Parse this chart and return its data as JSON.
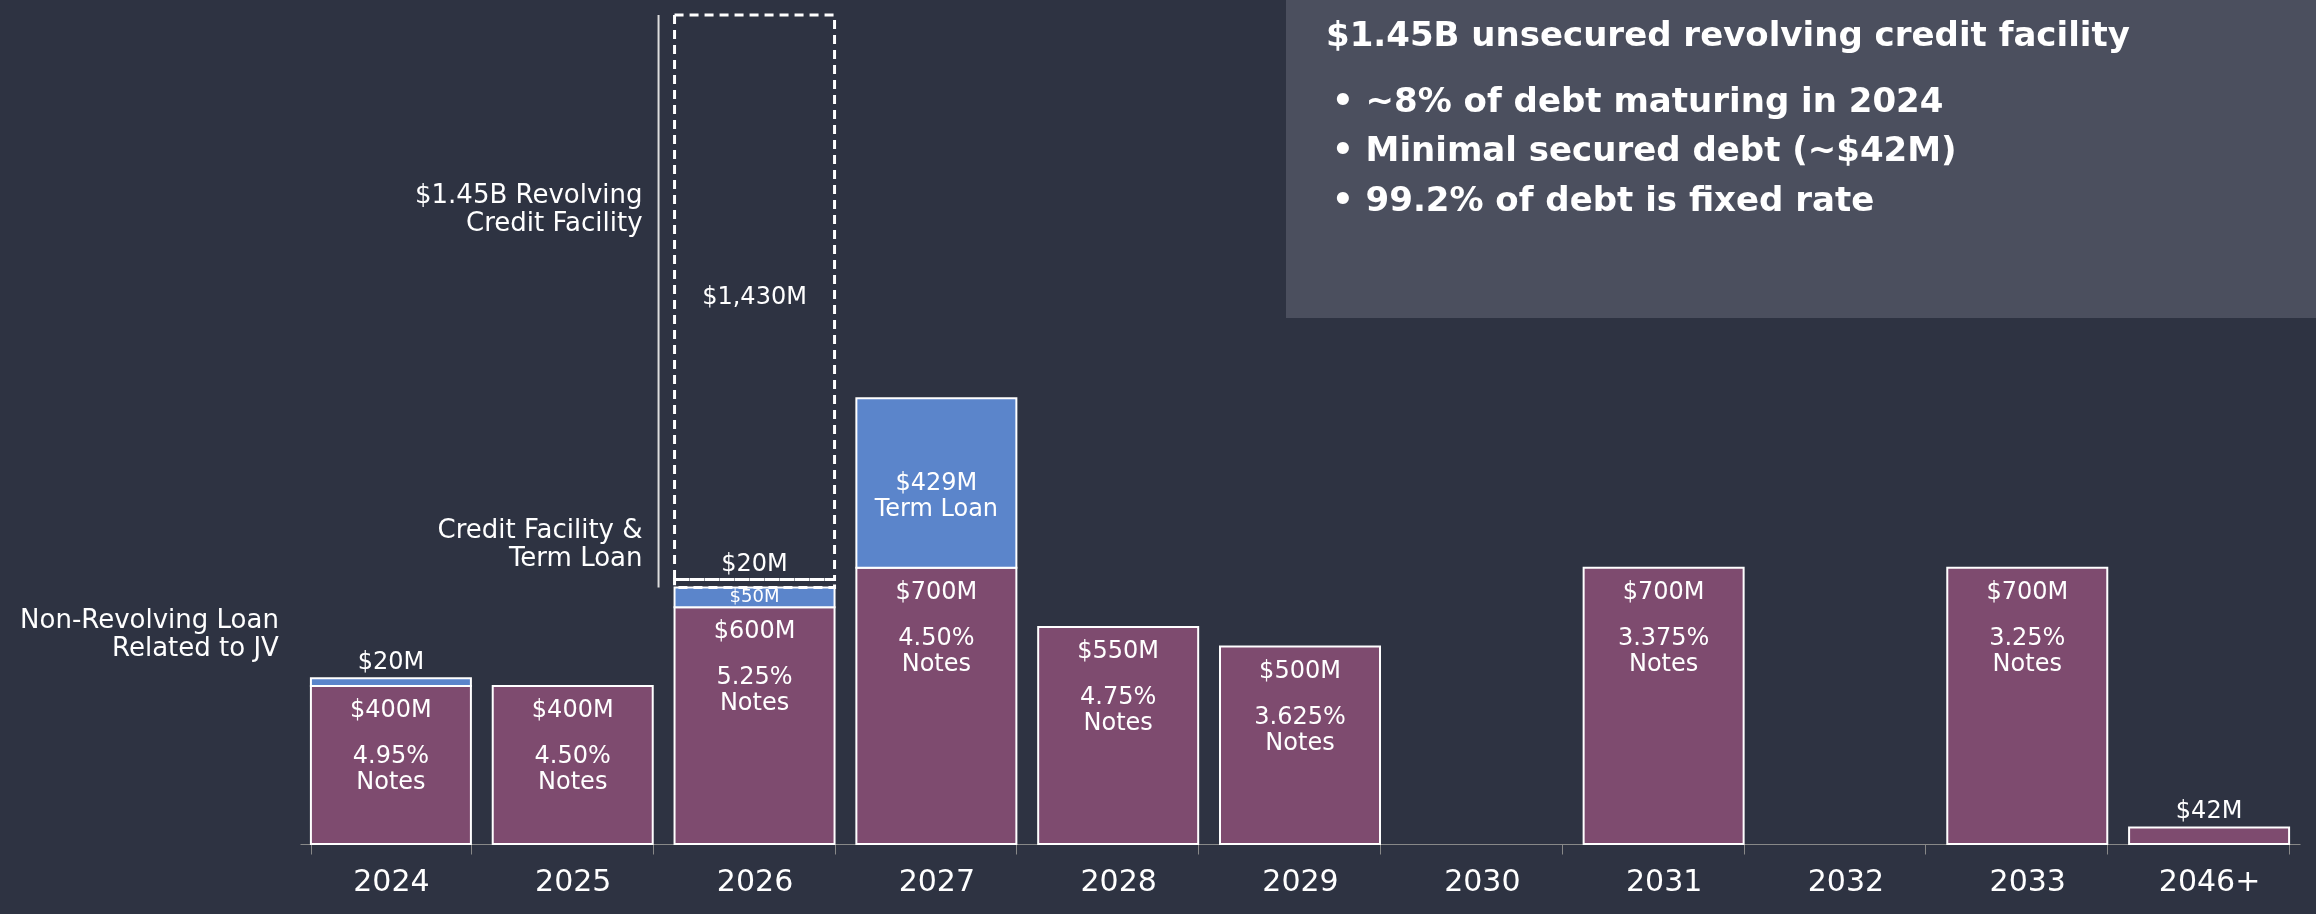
{
  "chart_data": {
    "type": "bar",
    "stacked": true,
    "title": "$1.45B unsecured revolving credit facility",
    "subtitle": "• ~8% of debt maturing in 2024\n• Minimal secured debt (~$42M)\n• 99.2% of debt is fixed rate",
    "categories": [
      "2024",
      "2025",
      "2026",
      "2027",
      "2028",
      "2029",
      "2030",
      "2031",
      "2032",
      "2033",
      "2046+"
    ],
    "series": [
      {
        "color": "#7e4b6f",
        "values": [
          400,
          400,
          600,
          700,
          550,
          500,
          null,
          700,
          null,
          700,
          42
        ],
        "value_labels": [
          "$400M",
          "$400M",
          "$600M",
          "$700M",
          "$550M",
          "$500M",
          null,
          "$700M",
          null,
          "$700M",
          "$42M"
        ]
      },
      {
        "color": "#5b85cb",
        "values": [
          20,
          null,
          50,
          429,
          null,
          null,
          null,
          null,
          null,
          null,
          null
        ],
        "value_labels": [
          "$20M",
          null,
          "$50M",
          "$429M\nTerm Loan",
          null,
          null,
          null,
          null,
          null,
          null,
          null
        ]
      },
      {
        "color": "#ffffff",
        "line_style": "dashed",
        "values": [
          null,
          null,
          20,
          null,
          null,
          null,
          null,
          null,
          null,
          null,
          null
        ],
        "value_labels": [
          null,
          null,
          "$20M",
          null,
          null,
          null,
          null,
          null,
          null,
          null,
          null
        ]
      },
      {
        "color": "#ffffff",
        "line_style": "dashed",
        "values": [
          null,
          null,
          1430,
          null,
          null,
          null,
          null,
          null,
          null,
          null,
          null
        ],
        "value_labels": [
          null,
          null,
          "$1,430M",
          null,
          null,
          null,
          null,
          null,
          null,
          null,
          null
        ]
      }
    ],
    "annotations": [
      "Non-Revolving Loan\nRelated to JV",
      "$1.45B Revolving\nCredit Facility",
      "Credit Facility &\nTerm Loan",
      {
        "text": "4.95%\nNotes",
        "x": "2024",
        "y": 400
      },
      {
        "text": "4.50%\nNotes",
        "x": "2025",
        "y": 400
      },
      {
        "text": "5.25%\nNotes",
        "x": "2026",
        "y": 600
      },
      {
        "text": "4.50%\nNotes",
        "x": "2027",
        "y": 700
      },
      {
        "text": "4.75%\nNotes",
        "x": "2028",
        "y": 550
      },
      {
        "text": "3.625%\nNotes",
        "x": "2029",
        "y": 500
      },
      {
        "text": "3.375%\nNotes",
        "x": "2031",
        "y": 700
      },
      {
        "text": "3.25%\nNotes",
        "x": "2033",
        "y": 700
      }
    ]
  }
}
